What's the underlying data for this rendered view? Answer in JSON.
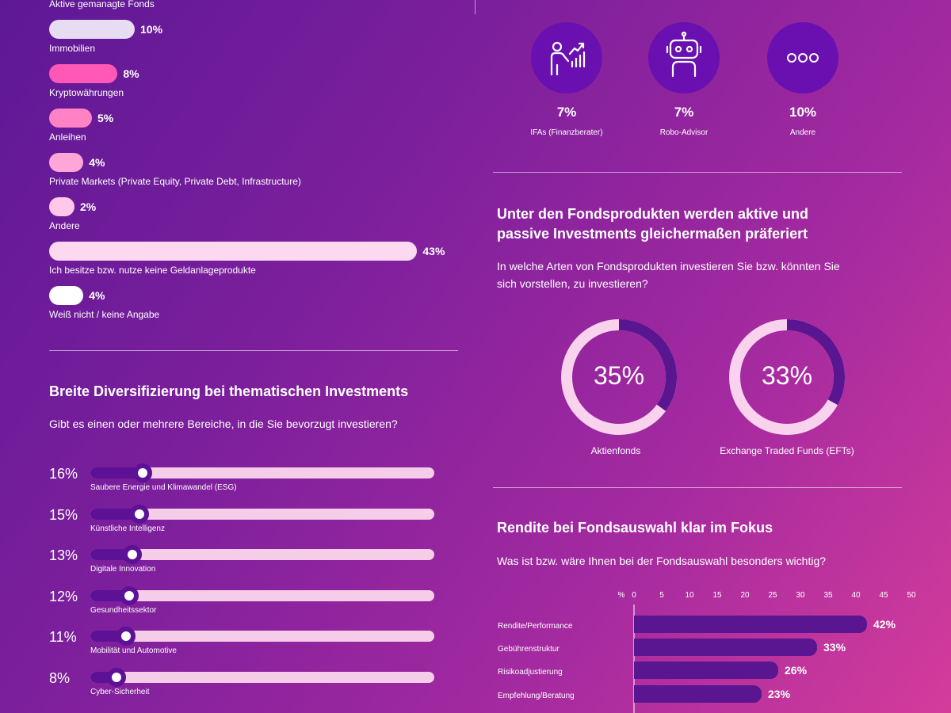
{
  "left_top": {
    "header_label": "Aktive gemanagte Fonds",
    "bars": [
      {
        "label": "Immobilien",
        "value": 10,
        "display": "10%",
        "color": "#e7dcf1"
      },
      {
        "label": "Kryptowährungen",
        "value": 8,
        "display": "8%",
        "color": "#ff58b7"
      },
      {
        "label": "Anleihen",
        "value": 5,
        "display": "5%",
        "color": "#ff82c5"
      },
      {
        "label": "Private Markets (Private Equity, Private Debt, Infrastructure)",
        "value": 4,
        "display": "4%",
        "color": "#ffa6d8"
      },
      {
        "label": "Andere",
        "value": 2,
        "display": "2%",
        "color": "#ffc7e8"
      },
      {
        "label": "Ich besitze bzw. nutze keine Geldanlageprodukte",
        "value": 43,
        "display": "43%",
        "color": "#fcd9f0"
      },
      {
        "label": "Weiß nicht / keine Angabe",
        "value": 4,
        "display": "4%",
        "color": "#ffffff"
      }
    ]
  },
  "thematic": {
    "title": "Breite Diversifizierung bei thematischen Investments",
    "question": "Gibt es einen oder mehrere Bereiche, in die Sie bevorzugt investieren?",
    "items": [
      {
        "label": "Saubere Energie und Klimawandel (ESG)",
        "value": 16,
        "display": "16%"
      },
      {
        "label": "Künstliche Intelligenz",
        "value": 15,
        "display": "15%"
      },
      {
        "label": "Digitale Innovation",
        "value": 13,
        "display": "13%"
      },
      {
        "label": "Gesundheitssektor",
        "value": 12,
        "display": "12%"
      },
      {
        "label": "Mobilität und Automotive",
        "value": 11,
        "display": "11%"
      },
      {
        "label": "Cyber-Sicherheit",
        "value": 8,
        "display": "8%"
      }
    ]
  },
  "advisors": [
    {
      "icon": "advisor-chart-icon",
      "value": "7%",
      "label": "IFAs (Finanzberater)"
    },
    {
      "icon": "robot-icon",
      "value": "7%",
      "label": "Robo-Advisor"
    },
    {
      "icon": "more-dots-icon",
      "value": "10%",
      "label": "Andere"
    }
  ],
  "fund_products": {
    "title_line1": "Unter den Fondsprodukten werden aktive und",
    "title_line2": "passive Investments gleichermaßen präferiert",
    "question_line1": "In welche Arten von Fondsprodukten investieren Sie bzw. könnten Sie",
    "question_line2": "sich vorstellen, zu investieren?",
    "donuts": [
      {
        "value": 35,
        "display": "35%",
        "label": "Aktienfonds"
      },
      {
        "value": 33,
        "display": "33%",
        "label": "Exchange Traded Funds (EFTs)"
      }
    ]
  },
  "returns": {
    "title": "Rendite bei Fondsauswahl klar im Fokus",
    "question": "Was ist bzw. wäre Ihnen bei der Fondsauswahl besonders wichtig?"
  },
  "chart_data": [
    {
      "type": "bar",
      "orientation": "horizontal",
      "title": "Aktive gemanagte Fonds",
      "categories": [
        "Immobilien",
        "Kryptowährungen",
        "Anleihen",
        "Private Markets (Private Equity, Private Debt, Infrastructure)",
        "Andere",
        "Ich besitze bzw. nutze keine Geldanlageprodukte",
        "Weiß nicht / keine Angabe"
      ],
      "values": [
        10,
        8,
        5,
        4,
        2,
        43,
        4
      ],
      "unit": "%"
    },
    {
      "type": "bar",
      "orientation": "horizontal",
      "title": "Breite Diversifizierung bei thematischen Investments",
      "categories": [
        "Saubere Energie und Klimawandel (ESG)",
        "Künstliche Intelligenz",
        "Digitale Innovation",
        "Gesundheitssektor",
        "Mobilität und Automotive",
        "Cyber-Sicherheit"
      ],
      "values": [
        16,
        15,
        13,
        12,
        11,
        8
      ],
      "unit": "%"
    },
    {
      "type": "bar",
      "orientation": "horizontal",
      "title": "Rendite bei Fondsauswahl klar im Fokus",
      "axis_unit": "%",
      "xlim": [
        0,
        50
      ],
      "xticks": [
        0,
        5,
        10,
        15,
        20,
        25,
        30,
        35,
        40,
        45,
        50
      ],
      "xtick_labels": [
        "0",
        "5",
        "10",
        "15",
        "20",
        "25",
        "30",
        "35",
        "40",
        "45",
        "50"
      ],
      "categories": [
        "Rendite/Performance",
        "Gebührenstruktur",
        "Risikoadjustierung",
        "Empfehlung/Beratung"
      ],
      "values": [
        42,
        33,
        26,
        23
      ],
      "display": [
        "42%",
        "33%",
        "26%",
        "23%"
      ],
      "color": "#5a1590"
    }
  ]
}
